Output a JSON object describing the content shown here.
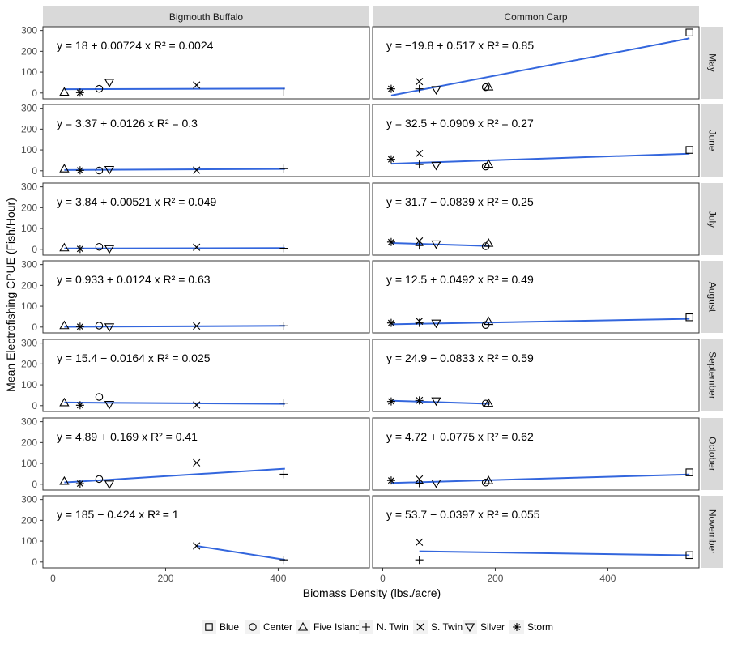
{
  "chart_data": {
    "type": "scatter",
    "xlabel": "Biomass Density (lbs./acre)",
    "ylabel": "Mean Electrofishing CPUE (Fish/Hour)",
    "columns": [
      "Bigmouth Buffalo",
      "Common Carp"
    ],
    "rows": [
      "May",
      "June",
      "July",
      "August",
      "September",
      "October",
      "November"
    ],
    "xlim": [
      -18,
      562
    ],
    "ylim": [
      -28,
      318
    ],
    "x_ticks": [
      0,
      200,
      400
    ],
    "y_ticks": [
      0,
      100,
      200,
      300
    ],
    "grid": false,
    "legend_position": "bottom",
    "line_color": "#3366dd",
    "lakes": [
      {
        "name": "Blue",
        "shape": "square"
      },
      {
        "name": "Center",
        "shape": "circle"
      },
      {
        "name": "Five Island",
        "shape": "triangle-up"
      },
      {
        "name": "N. Twin",
        "shape": "plus"
      },
      {
        "name": "S. Twin",
        "shape": "cross"
      },
      {
        "name": "Silver",
        "shape": "triangle-down"
      },
      {
        "name": "Storm",
        "shape": "asterisk"
      }
    ],
    "facets": [
      {
        "col": 0,
        "row": 0,
        "equation": "y = 18 + 0.00724 x   R² = 0.0024",
        "intercept": 18,
        "slope": 0.00724,
        "line_x": [
          20,
          412
        ],
        "points": [
          {
            "lake": "Five Island",
            "x": 20,
            "y": 5
          },
          {
            "lake": "Storm",
            "x": 48,
            "y": 2
          },
          {
            "lake": "Center",
            "x": 82,
            "y": 20
          },
          {
            "lake": "Silver",
            "x": 100,
            "y": 50
          },
          {
            "lake": "S. Twin",
            "x": 255,
            "y": 38
          },
          {
            "lake": "N. Twin",
            "x": 410,
            "y": 5
          }
        ]
      },
      {
        "col": 1,
        "row": 0,
        "equation": "y = −19.8 + 0.517 x   R² = 0.85",
        "intercept": -19.8,
        "slope": 0.517,
        "line_x": [
          15,
          545
        ],
        "points": [
          {
            "lake": "Storm",
            "x": 15,
            "y": 20
          },
          {
            "lake": "S. Twin",
            "x": 65,
            "y": 55
          },
          {
            "lake": "N. Twin",
            "x": 65,
            "y": 20
          },
          {
            "lake": "Silver",
            "x": 95,
            "y": 15
          },
          {
            "lake": "Center",
            "x": 183,
            "y": 28
          },
          {
            "lake": "Five Island",
            "x": 188,
            "y": 30
          },
          {
            "lake": "Blue",
            "x": 545,
            "y": 290
          }
        ]
      },
      {
        "col": 0,
        "row": 1,
        "equation": "y = 3.37 + 0.0126 x   R² = 0.3",
        "intercept": 3.37,
        "slope": 0.0126,
        "line_x": [
          20,
          412
        ],
        "points": [
          {
            "lake": "Five Island",
            "x": 20,
            "y": 10
          },
          {
            "lake": "Storm",
            "x": 48,
            "y": 2
          },
          {
            "lake": "Center",
            "x": 82,
            "y": 1
          },
          {
            "lake": "Silver",
            "x": 100,
            "y": 5
          },
          {
            "lake": "S. Twin",
            "x": 255,
            "y": 3
          },
          {
            "lake": "N. Twin",
            "x": 410,
            "y": 10
          }
        ]
      },
      {
        "col": 1,
        "row": 1,
        "equation": "y = 32.5 + 0.0909 x   R² = 0.27",
        "intercept": 32.5,
        "slope": 0.0909,
        "line_x": [
          15,
          545
        ],
        "points": [
          {
            "lake": "Storm",
            "x": 15,
            "y": 55
          },
          {
            "lake": "S. Twin",
            "x": 65,
            "y": 83
          },
          {
            "lake": "N. Twin",
            "x": 65,
            "y": 30
          },
          {
            "lake": "Silver",
            "x": 95,
            "y": 25
          },
          {
            "lake": "Center",
            "x": 183,
            "y": 20
          },
          {
            "lake": "Five Island",
            "x": 188,
            "y": 32
          },
          {
            "lake": "Blue",
            "x": 545,
            "y": 100
          }
        ]
      },
      {
        "col": 0,
        "row": 2,
        "equation": "y = 3.84 + 0.00521 x   R² = 0.049",
        "intercept": 3.84,
        "slope": 0.00521,
        "line_x": [
          20,
          412
        ],
        "points": [
          {
            "lake": "Five Island",
            "x": 20,
            "y": 8
          },
          {
            "lake": "Storm",
            "x": 48,
            "y": 2
          },
          {
            "lake": "Center",
            "x": 82,
            "y": 12
          },
          {
            "lake": "Silver",
            "x": 100,
            "y": 2
          },
          {
            "lake": "S. Twin",
            "x": 255,
            "y": 10
          },
          {
            "lake": "N. Twin",
            "x": 410,
            "y": 5
          }
        ]
      },
      {
        "col": 1,
        "row": 2,
        "equation": "y = 31.7 − 0.0839 x   R² = 0.25",
        "intercept": 31.7,
        "slope": -0.0839,
        "line_x": [
          15,
          190
        ],
        "points": [
          {
            "lake": "Storm",
            "x": 15,
            "y": 35
          },
          {
            "lake": "S. Twin",
            "x": 65,
            "y": 40
          },
          {
            "lake": "N. Twin",
            "x": 65,
            "y": 18
          },
          {
            "lake": "Silver",
            "x": 95,
            "y": 25
          },
          {
            "lake": "Center",
            "x": 183,
            "y": 15
          },
          {
            "lake": "Five Island",
            "x": 188,
            "y": 30
          }
        ]
      },
      {
        "col": 0,
        "row": 3,
        "equation": "y = 0.933 + 0.0124 x   R² = 0.63",
        "intercept": 0.933,
        "slope": 0.0124,
        "line_x": [
          20,
          412
        ],
        "points": [
          {
            "lake": "Five Island",
            "x": 20,
            "y": 8
          },
          {
            "lake": "Storm",
            "x": 48,
            "y": 2
          },
          {
            "lake": "Center",
            "x": 82,
            "y": 7
          },
          {
            "lake": "Silver",
            "x": 100,
            "y": 0
          },
          {
            "lake": "S. Twin",
            "x": 255,
            "y": 5
          },
          {
            "lake": "N. Twin",
            "x": 410,
            "y": 6
          }
        ]
      },
      {
        "col": 1,
        "row": 3,
        "equation": "y = 12.5 + 0.0492 x   R² = 0.49",
        "intercept": 12.5,
        "slope": 0.0492,
        "line_x": [
          15,
          545
        ],
        "points": [
          {
            "lake": "Storm",
            "x": 15,
            "y": 20
          },
          {
            "lake": "S. Twin",
            "x": 65,
            "y": 28
          },
          {
            "lake": "N. Twin",
            "x": 65,
            "y": 20
          },
          {
            "lake": "Silver",
            "x": 95,
            "y": 18
          },
          {
            "lake": "Center",
            "x": 183,
            "y": 10
          },
          {
            "lake": "Five Island",
            "x": 188,
            "y": 28
          },
          {
            "lake": "Blue",
            "x": 545,
            "y": 47
          }
        ]
      },
      {
        "col": 0,
        "row": 4,
        "equation": "y = 15.4 − 0.0164 x   R² = 0.025",
        "intercept": 15.4,
        "slope": -0.0164,
        "line_x": [
          20,
          412
        ],
        "points": [
          {
            "lake": "Five Island",
            "x": 20,
            "y": 15
          },
          {
            "lake": "Storm",
            "x": 48,
            "y": 2
          },
          {
            "lake": "Center",
            "x": 82,
            "y": 42
          },
          {
            "lake": "Silver",
            "x": 100,
            "y": 5
          },
          {
            "lake": "S. Twin",
            "x": 255,
            "y": 3
          },
          {
            "lake": "N. Twin",
            "x": 410,
            "y": 12
          }
        ]
      },
      {
        "col": 1,
        "row": 4,
        "equation": "y = 24.9 − 0.0833 x   R² = 0.59",
        "intercept": 24.9,
        "slope": -0.0833,
        "line_x": [
          15,
          190
        ],
        "points": [
          {
            "lake": "Storm",
            "x": 15,
            "y": 20
          },
          {
            "lake": "S. Twin",
            "x": 65,
            "y": 25
          },
          {
            "lake": "N. Twin",
            "x": 65,
            "y": 25
          },
          {
            "lake": "Silver",
            "x": 95,
            "y": 22
          },
          {
            "lake": "Center",
            "x": 183,
            "y": 10
          },
          {
            "lake": "Five Island",
            "x": 188,
            "y": 12
          }
        ]
      },
      {
        "col": 0,
        "row": 5,
        "equation": "y = 4.89 + 0.169 x   R² = 0.41",
        "intercept": 4.89,
        "slope": 0.169,
        "line_x": [
          20,
          412
        ],
        "points": [
          {
            "lake": "Five Island",
            "x": 20,
            "y": 15
          },
          {
            "lake": "Storm",
            "x": 48,
            "y": 3
          },
          {
            "lake": "Center",
            "x": 82,
            "y": 25
          },
          {
            "lake": "Silver",
            "x": 100,
            "y": 0
          },
          {
            "lake": "S. Twin",
            "x": 255,
            "y": 103
          },
          {
            "lake": "N. Twin",
            "x": 410,
            "y": 48
          }
        ]
      },
      {
        "col": 1,
        "row": 5,
        "equation": "y = 4.72 + 0.0775 x   R² = 0.62",
        "intercept": 4.72,
        "slope": 0.0775,
        "line_x": [
          15,
          545
        ],
        "points": [
          {
            "lake": "Storm",
            "x": 15,
            "y": 18
          },
          {
            "lake": "S. Twin",
            "x": 65,
            "y": 25
          },
          {
            "lake": "N. Twin",
            "x": 65,
            "y": 5
          },
          {
            "lake": "Silver",
            "x": 95,
            "y": 5
          },
          {
            "lake": "Center",
            "x": 183,
            "y": 8
          },
          {
            "lake": "Five Island",
            "x": 188,
            "y": 18
          },
          {
            "lake": "Blue",
            "x": 545,
            "y": 57
          }
        ]
      },
      {
        "col": 0,
        "row": 6,
        "equation": "y = 185 − 0.424 x   R² = 1",
        "intercept": 185,
        "slope": -0.424,
        "line_x": [
          255,
          412
        ],
        "points": [
          {
            "lake": "S. Twin",
            "x": 255,
            "y": 77
          },
          {
            "lake": "N. Twin",
            "x": 410,
            "y": 10
          }
        ]
      },
      {
        "col": 1,
        "row": 6,
        "equation": "y = 53.7 − 0.0397 x   R² = 0.055",
        "intercept": 53.7,
        "slope": -0.0397,
        "line_x": [
          65,
          545
        ],
        "points": [
          {
            "lake": "S. Twin",
            "x": 65,
            "y": 95
          },
          {
            "lake": "N. Twin",
            "x": 65,
            "y": 10
          },
          {
            "lake": "Blue",
            "x": 545,
            "y": 33
          }
        ]
      }
    ]
  }
}
